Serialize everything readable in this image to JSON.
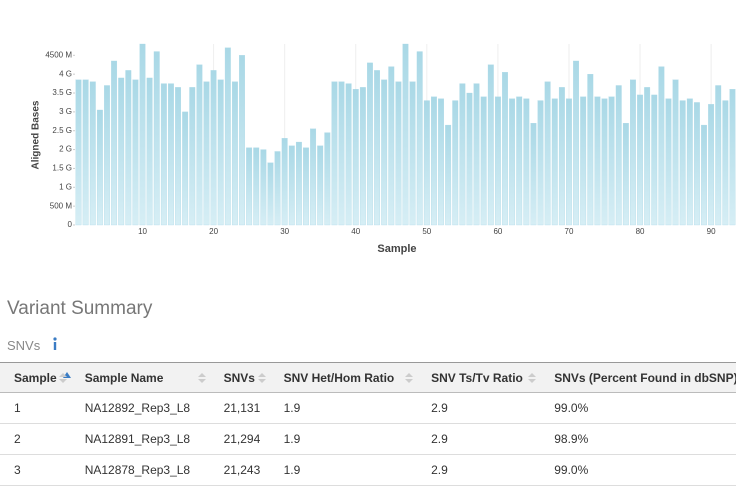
{
  "chart_data": {
    "type": "bar",
    "y_label": "Aligned Bases",
    "x_label": "Sample",
    "x": [
      1,
      2,
      3,
      4,
      5,
      6,
      7,
      8,
      9,
      10,
      11,
      12,
      13,
      14,
      15,
      16,
      17,
      18,
      19,
      20,
      21,
      22,
      23,
      24,
      25,
      26,
      27,
      28,
      29,
      30,
      31,
      32,
      33,
      34,
      35,
      36,
      37,
      38,
      39,
      40,
      41,
      42,
      43,
      44,
      45,
      46,
      47,
      48,
      49,
      50,
      51,
      52,
      53,
      54,
      55,
      56,
      57,
      58,
      59,
      60,
      61,
      62,
      63,
      64,
      65,
      66,
      67,
      68,
      69,
      70,
      71,
      72,
      73,
      74,
      75,
      76,
      77,
      78,
      79,
      80,
      81,
      82,
      83,
      84,
      85,
      86,
      87,
      88,
      89,
      90,
      91,
      92,
      93
    ],
    "values": [
      3850000000,
      3850000000,
      3800000000,
      3050000000,
      3700000000,
      4350000000,
      3900000000,
      4100000000,
      3850000000,
      4800000000,
      3900000000,
      4600000000,
      3750000000,
      3750000000,
      3650000000,
      3000000000,
      3650000000,
      4250000000,
      3800000000,
      4100000000,
      3850000000,
      4700000000,
      3800000000,
      4500000000,
      2050000000,
      2050000000,
      2000000000,
      1650000000,
      1950000000,
      2300000000,
      2100000000,
      2200000000,
      2050000000,
      2550000000,
      2100000000,
      2450000000,
      3800000000,
      3800000000,
      3750000000,
      3600000000,
      3650000000,
      4300000000,
      4100000000,
      3850000000,
      4200000000,
      3800000000,
      4800000000,
      3800000000,
      4600000000,
      3300000000,
      3400000000,
      3350000000,
      2650000000,
      3300000000,
      3750000000,
      3500000000,
      3750000000,
      3400000000,
      4250000000,
      3400000000,
      4050000000,
      3350000000,
      3400000000,
      3350000000,
      2700000000,
      3300000000,
      3800000000,
      3350000000,
      3650000000,
      3350000000,
      4350000000,
      3400000000,
      4000000000,
      3400000000,
      3350000000,
      3400000000,
      3700000000,
      2700000000,
      3850000000,
      3450000000,
      3650000000,
      3450000000,
      4200000000,
      3350000000,
      3850000000,
      3300000000,
      3350000000,
      3250000000,
      2650000000,
      3200000000,
      3700000000,
      3300000000,
      3600000000
    ],
    "color": "#a9d8e6",
    "xlim": [
      0.5,
      93.5
    ],
    "xticks": [
      10,
      20,
      30,
      40,
      50,
      60,
      70,
      80,
      90
    ],
    "ylim": [
      0,
      4800000000
    ],
    "yticks": [
      0,
      {
        "value": 500000000,
        "label": "500 M"
      },
      {
        "value": 1000000000,
        "label": "1 G"
      },
      {
        "value": 1500000000,
        "label": "1.5 G"
      },
      {
        "value": 2000000000,
        "label": "2 G"
      },
      {
        "value": 2500000000,
        "label": "2.5 G"
      },
      {
        "value": 3000000000,
        "label": "3 G"
      },
      {
        "value": 3500000000,
        "label": "3.5 G"
      },
      {
        "value": 4000000000,
        "label": "4 G"
      },
      {
        "value": 4500000000,
        "label": "4500 M"
      }
    ],
    "grid": true
  },
  "section": {
    "title": "Variant Summary",
    "subtitle": "SNVs"
  },
  "table": {
    "columns": [
      "Sample",
      "Sample Name",
      "SNVs",
      "SNV Het/Hom Ratio",
      "SNV Ts/Tv Ratio",
      "SNVs (Percent Found in dbSNP)"
    ],
    "rows": [
      [
        "1",
        "NA12892_Rep3_L8",
        "21,131",
        "1.9",
        "2.9",
        "99.0%"
      ],
      [
        "2",
        "NA12891_Rep3_L8",
        "21,294",
        "1.9",
        "2.9",
        "98.9%"
      ],
      [
        "3",
        "NA12878_Rep3_L8",
        "21,243",
        "1.9",
        "2.9",
        "99.0%"
      ]
    ]
  }
}
